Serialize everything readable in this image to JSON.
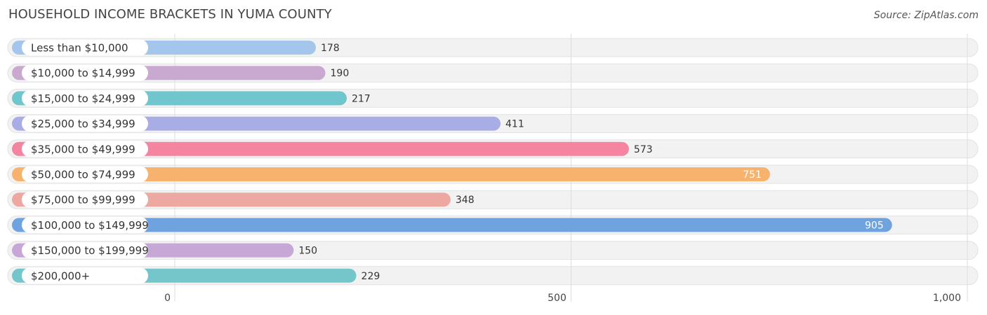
{
  "header": {
    "title": "HOUSEHOLD INCOME BRACKETS IN YUMA COUNTY",
    "source": "Source: ZipAtlas.com"
  },
  "chart_data": {
    "type": "bar",
    "orientation": "horizontal",
    "title": "HOUSEHOLD INCOME BRACKETS IN YUMA COUNTY",
    "xlabel": "",
    "ylabel": "",
    "categories": [
      "Less than $10,000",
      "$10,000 to $14,999",
      "$15,000 to $24,999",
      "$25,000 to $34,999",
      "$35,000 to $49,999",
      "$50,000 to $74,999",
      "$75,000 to $99,999",
      "$100,000 to $149,999",
      "$150,000 to $199,999",
      "$200,000+"
    ],
    "values": [
      178,
      190,
      217,
      411,
      573,
      751,
      348,
      905,
      150,
      229
    ],
    "value_labels": [
      "178",
      "190",
      "217",
      "411",
      "573",
      "751",
      "348",
      "905",
      "150",
      "229"
    ],
    "colors": [
      "#a5c6ec",
      "#c9a9d0",
      "#6fc6cc",
      "#a9ade6",
      "#f4849f",
      "#f7b26e",
      "#eda8a2",
      "#6ea3e0",
      "#c7a7d6",
      "#74c6cb"
    ],
    "xlim": [
      0,
      1000
    ],
    "xticks": [
      0,
      500,
      1000
    ],
    "xtick_labels": [
      "0",
      "500",
      "1,000"
    ],
    "grid": true
  }
}
